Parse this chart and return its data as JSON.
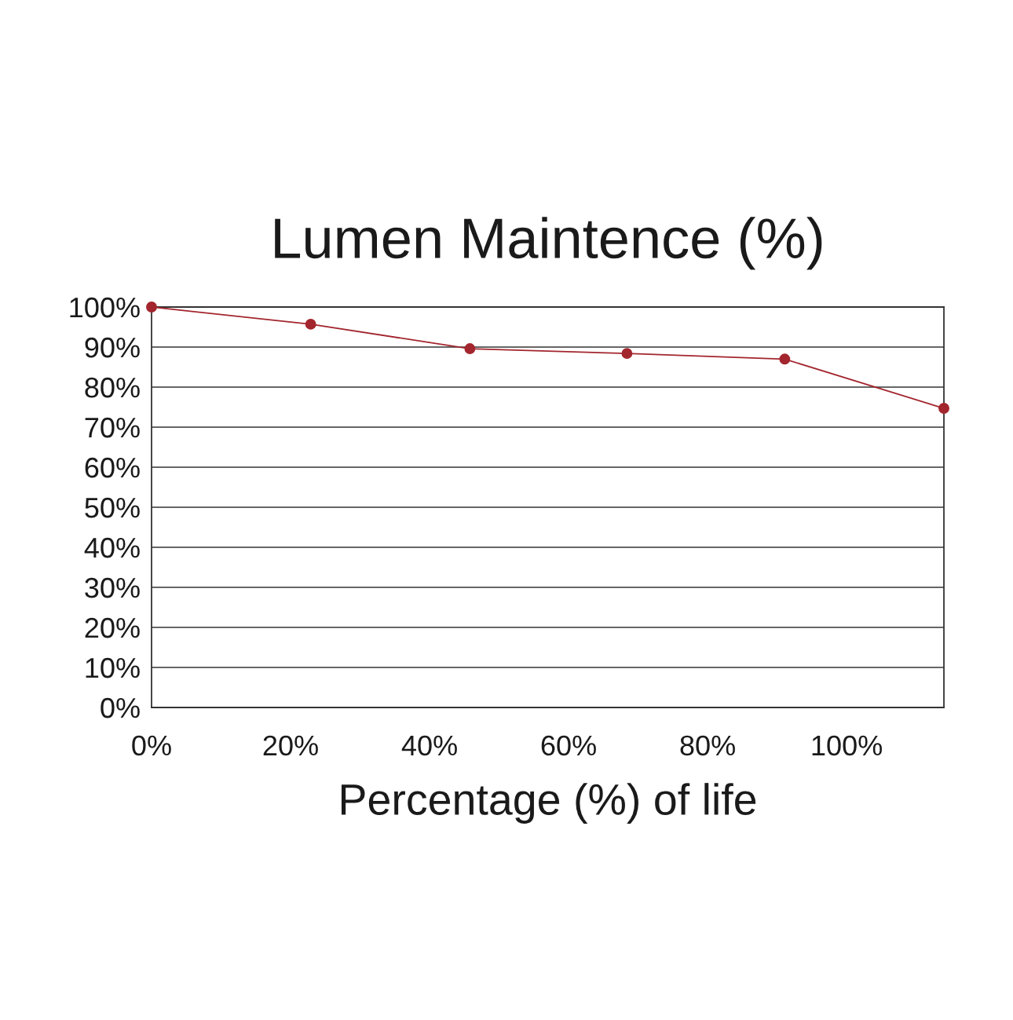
{
  "chart_data": {
    "type": "line",
    "title": "Lumen Maintence (%)",
    "xlabel": "Percentage (%) of life",
    "x": [
      0,
      22.9,
      45.8,
      68.4,
      91.1,
      114
    ],
    "series": [
      {
        "color": "#a3262e",
        "values": [
          100,
          95.7,
          89.6,
          88.4,
          87,
          74.7
        ]
      }
    ],
    "xlim": [
      0,
      114
    ],
    "xticks": [
      {
        "value": 0,
        "label": "0%"
      },
      {
        "value": 20,
        "label": "20%"
      },
      {
        "value": 40,
        "label": "40%"
      },
      {
        "value": 60,
        "label": "60%"
      },
      {
        "value": 80,
        "label": "80%"
      },
      {
        "value": 100,
        "label": "100%"
      }
    ],
    "ylim": [
      0,
      100
    ],
    "yticks": [
      {
        "value": 0,
        "label": "0%"
      },
      {
        "value": 10,
        "label": "10%"
      },
      {
        "value": 20,
        "label": "20%"
      },
      {
        "value": 30,
        "label": "30%"
      },
      {
        "value": 40,
        "label": "40%"
      },
      {
        "value": 50,
        "label": "50%"
      },
      {
        "value": 60,
        "label": "60%"
      },
      {
        "value": 70,
        "label": "70%"
      },
      {
        "value": 80,
        "label": "80%"
      },
      {
        "value": 90,
        "label": "90%"
      },
      {
        "value": 100,
        "label": "100%"
      }
    ],
    "grid": "y",
    "marker": "circle",
    "line_style": "solid",
    "legend": false
  }
}
